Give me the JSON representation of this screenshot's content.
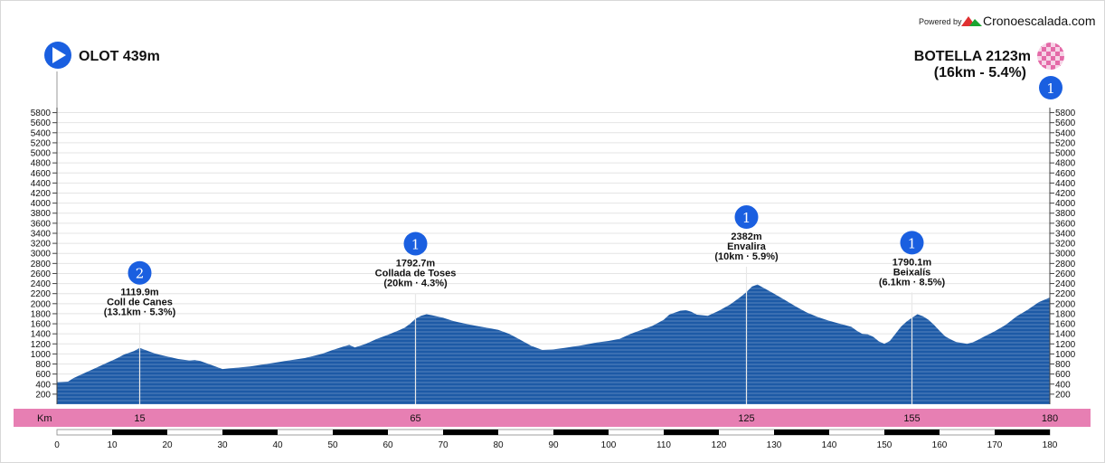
{
  "branding": {
    "powered_by": "Powered by",
    "site_name": "Cronoescalada.com"
  },
  "start": {
    "label": "OLOT 439m"
  },
  "finish": {
    "label_line1": "BOTELLA 2123m",
    "label_line2": "(16km - 5.4%)",
    "category": "1"
  },
  "band": {
    "label": "Km",
    "marks": [
      {
        "km": 15,
        "label": "15"
      },
      {
        "km": 65,
        "label": "65"
      },
      {
        "km": 125,
        "label": "125"
      },
      {
        "km": 155,
        "label": "155"
      },
      {
        "km": 180,
        "label": "180"
      }
    ]
  },
  "chart_data": {
    "type": "area",
    "title": "",
    "xlabel": "Km",
    "ylabel": "",
    "xlim": [
      0,
      180
    ],
    "ylim": [
      0,
      6000
    ],
    "y_ticks": [
      200,
      400,
      600,
      800,
      1000,
      1200,
      1400,
      1600,
      1800,
      2000,
      2200,
      2400,
      2600,
      2800,
      3000,
      3200,
      3400,
      3600,
      3800,
      4000,
      4200,
      4400,
      4600,
      4800,
      5000,
      5200,
      5400,
      5600,
      5800
    ],
    "x_ticks": [
      0,
      10,
      20,
      30,
      40,
      50,
      60,
      70,
      80,
      90,
      100,
      110,
      120,
      130,
      140,
      150,
      160,
      170,
      180
    ],
    "grid": true,
    "color": "#1d5aa6",
    "series": [
      {
        "x": [
          0,
          2,
          3,
          5,
          7,
          9,
          11,
          12,
          13,
          14,
          15,
          16,
          17,
          18,
          20,
          22,
          24,
          25,
          26,
          28,
          30,
          32,
          35,
          38,
          42,
          45,
          48,
          50,
          52,
          53,
          54,
          56,
          58,
          60,
          62,
          63,
          64,
          65,
          66,
          67,
          68,
          70,
          72,
          75,
          78,
          80,
          82,
          84,
          86,
          88,
          90,
          92,
          95,
          98,
          100,
          102,
          104,
          106,
          108,
          110,
          111,
          112,
          113,
          114,
          115,
          116,
          118,
          120,
          122,
          123,
          124,
          125,
          126,
          127,
          128,
          130,
          132,
          134,
          136,
          138,
          140,
          142,
          144,
          145,
          146,
          147,
          148,
          149,
          150,
          151,
          152,
          153,
          154,
          155,
          156,
          157,
          158,
          159,
          160,
          161,
          162,
          163,
          164,
          165,
          166,
          167,
          168,
          170,
          172,
          174,
          176,
          178,
          180
        ],
        "y": [
          439,
          450,
          520,
          620,
          720,
          820,
          920,
          980,
          1020,
          1060,
          1120,
          1080,
          1040,
          1000,
          950,
          900,
          870,
          880,
          860,
          780,
          700,
          720,
          750,
          800,
          870,
          920,
          1000,
          1080,
          1150,
          1180,
          1130,
          1200,
          1300,
          1380,
          1470,
          1520,
          1600,
          1700,
          1760,
          1790,
          1770,
          1720,
          1650,
          1580,
          1520,
          1480,
          1400,
          1280,
          1160,
          1080,
          1090,
          1120,
          1170,
          1230,
          1260,
          1300,
          1400,
          1480,
          1560,
          1680,
          1780,
          1820,
          1860,
          1870,
          1840,
          1780,
          1760,
          1860,
          1980,
          2060,
          2140,
          2230,
          2340,
          2382,
          2320,
          2200,
          2070,
          1940,
          1820,
          1730,
          1660,
          1600,
          1540,
          1460,
          1400,
          1390,
          1340,
          1250,
          1200,
          1260,
          1400,
          1540,
          1640,
          1720,
          1790,
          1750,
          1680,
          1580,
          1460,
          1350,
          1290,
          1240,
          1220,
          1200,
          1230,
          1280,
          1340,
          1450,
          1580,
          1750,
          1880,
          2030,
          2123
        ]
      }
    ],
    "climbs": [
      {
        "km": 15,
        "elevation_label": "1119.9m",
        "name": "Coll de Canes",
        "detail": "(13.1km · 5.3%)",
        "category": "2"
      },
      {
        "km": 65,
        "elevation_label": "1792.7m",
        "name": "Collada de Toses",
        "detail": "(20km · 4.3%)",
        "category": "1"
      },
      {
        "km": 125,
        "elevation_label": "2382m",
        "name": "Envalira",
        "detail": "(10km · 5.9%)",
        "category": "1"
      },
      {
        "km": 155,
        "elevation_label": "1790.1m",
        "name": "Beixalís",
        "detail": "(6.1km · 8.5%)",
        "category": "1"
      }
    ]
  }
}
